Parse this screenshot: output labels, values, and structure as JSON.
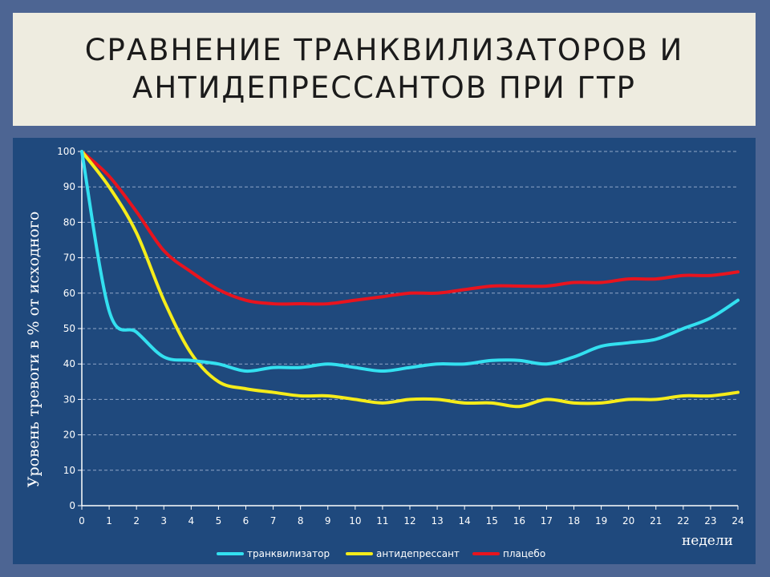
{
  "slide": {
    "title_line1": "СРАВНЕНИЕ ТРАНКВИЛИЗАТОРОВ И",
    "title_line2": "АНТИДЕПРЕССАНТОВ ПРИ ГТР"
  },
  "colors": {
    "background": "#4d6593",
    "title_box": "#eeece0",
    "chart_panel": "#1f497d",
    "grid": "#8fa6c8",
    "axis": "#ffffff"
  },
  "chart_data": {
    "type": "line",
    "title": "",
    "xlabel": "недели",
    "ylabel": "Уровень тревоги в % от исходного",
    "xlim": [
      0,
      24
    ],
    "ylim": [
      0,
      100
    ],
    "x_ticks": [
      0,
      1,
      2,
      3,
      4,
      5,
      6,
      7,
      8,
      9,
      10,
      11,
      12,
      13,
      14,
      15,
      16,
      17,
      18,
      19,
      20,
      21,
      22,
      23,
      24
    ],
    "y_ticks": [
      0,
      10,
      20,
      30,
      40,
      50,
      60,
      70,
      80,
      90,
      100
    ],
    "grid": "horizontal dashed",
    "legend_position": "bottom",
    "x": [
      0,
      1,
      2,
      3,
      4,
      5,
      6,
      7,
      8,
      9,
      10,
      11,
      12,
      13,
      14,
      15,
      16,
      17,
      18,
      19,
      20,
      21,
      22,
      23,
      24
    ],
    "series": [
      {
        "name": "транквилизатор",
        "color": "#33e0f0",
        "values": [
          100,
          55,
          49,
          42,
          41,
          40,
          38,
          39,
          39,
          40,
          39,
          38,
          39,
          40,
          40,
          41,
          41,
          40,
          42,
          45,
          46,
          47,
          50,
          53,
          58
        ]
      },
      {
        "name": "антидепрессант",
        "color": "#f5ec1a",
        "values": [
          100,
          90,
          77,
          58,
          43,
          35,
          33,
          32,
          31,
          31,
          30,
          29,
          30,
          30,
          29,
          29,
          28,
          30,
          29,
          29,
          30,
          30,
          31,
          31,
          32
        ]
      },
      {
        "name": "плацебо",
        "color": "#e8141e",
        "values": [
          100,
          93,
          83,
          72,
          66,
          61,
          58,
          57,
          57,
          57,
          58,
          59,
          60,
          60,
          61,
          62,
          62,
          62,
          63,
          63,
          64,
          64,
          65,
          65,
          66
        ]
      }
    ]
  }
}
